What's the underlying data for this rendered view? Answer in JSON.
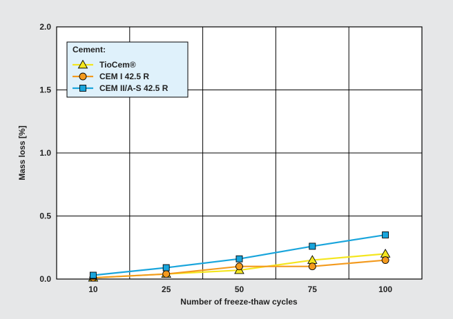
{
  "chart_data": {
    "type": "line",
    "xlabel": "Number of freeze-thaw cycles",
    "ylabel": "Mass loss [%]",
    "x": [
      10,
      25,
      50,
      75,
      100
    ],
    "x_tick_labels": [
      "10",
      "25",
      "50",
      "75",
      "100"
    ],
    "y_tick_labels": [
      "0.0",
      "0.5",
      "1.0",
      "1.5",
      "2.0"
    ],
    "ylim": [
      0,
      2.0
    ],
    "grid": true,
    "legend": {
      "title": "Cement:",
      "placement": "top-left"
    },
    "series": [
      {
        "name": "TioCem®",
        "marker": "triangle",
        "color": "#f4e61e",
        "values": [
          0.01,
          0.04,
          0.07,
          0.15,
          0.2
        ]
      },
      {
        "name": "CEM I 42.5 R",
        "marker": "circle",
        "color": "#f39a1e",
        "values": [
          0.01,
          0.04,
          0.1,
          0.1,
          0.15
        ]
      },
      {
        "name": "CEM II/A-S 42.5 R",
        "marker": "square",
        "color": "#19a5dc",
        "values": [
          0.03,
          0.09,
          0.16,
          0.26,
          0.35
        ]
      }
    ]
  }
}
